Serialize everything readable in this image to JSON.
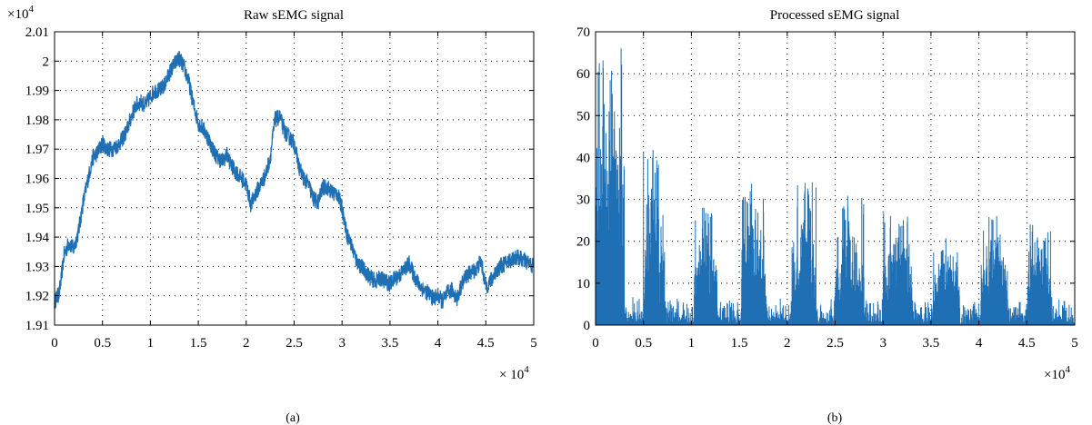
{
  "chart_data": [
    {
      "type": "line",
      "title": "Raw sEMG signal",
      "panel_label": "(a)",
      "x_exponent_label": "× 10",
      "x_exponent": "4",
      "y_exponent_label": "×10",
      "y_exponent": "4",
      "xlim": [
        0,
        5
      ],
      "ylim": [
        1.91,
        2.01
      ],
      "x_ticks": [
        0,
        0.5,
        1,
        1.5,
        2,
        2.5,
        3,
        3.5,
        4,
        4.5,
        5
      ],
      "x_tick_labels": [
        "0",
        "0.5",
        "1",
        "1.5",
        "2",
        "2.5",
        "3",
        "3.5",
        "4",
        "4.5",
        "5"
      ],
      "y_ticks": [
        1.91,
        1.92,
        1.93,
        1.94,
        1.95,
        1.96,
        1.97,
        1.98,
        1.99,
        2.0,
        2.01
      ],
      "y_tick_labels": [
        "1.91",
        "1.92",
        "1.93",
        "1.94",
        "1.95",
        "1.96",
        "1.97",
        "1.98",
        "1.99",
        "2",
        "2.01"
      ],
      "grid": true,
      "color": "#1f6fb4",
      "series": [
        {
          "x": [
            0,
            0.05,
            0.1,
            0.15,
            0.2,
            0.25,
            0.3,
            0.35,
            0.4,
            0.45,
            0.5,
            0.55,
            0.6,
            0.65,
            0.7,
            0.75,
            0.8,
            0.85,
            0.9,
            0.95,
            1.0,
            1.05,
            1.1,
            1.15,
            1.2,
            1.25,
            1.3,
            1.35,
            1.4,
            1.45,
            1.5,
            1.55,
            1.6,
            1.65,
            1.7,
            1.75,
            1.8,
            1.85,
            1.9,
            1.95,
            2.0,
            2.05,
            2.1,
            2.15,
            2.2,
            2.25,
            2.3,
            2.35,
            2.4,
            2.45,
            2.5,
            2.55,
            2.6,
            2.65,
            2.7,
            2.75,
            2.8,
            2.85,
            2.9,
            2.95,
            3.0,
            3.05,
            3.1,
            3.15,
            3.2,
            3.25,
            3.3,
            3.35,
            3.4,
            3.45,
            3.5,
            3.55,
            3.6,
            3.65,
            3.7,
            3.75,
            3.8,
            3.85,
            3.9,
            3.95,
            4.0,
            4.05,
            4.1,
            4.15,
            4.2,
            4.25,
            4.3,
            4.35,
            4.4,
            4.45,
            4.5,
            4.55,
            4.6,
            4.65,
            4.7,
            4.75,
            4.8,
            4.85,
            4.9,
            4.95,
            5.0
          ],
          "y": [
            1.918,
            1.921,
            1.934,
            1.938,
            1.936,
            1.942,
            1.952,
            1.96,
            1.967,
            1.969,
            1.972,
            1.97,
            1.97,
            1.971,
            1.973,
            1.976,
            1.981,
            1.985,
            1.986,
            1.985,
            1.988,
            1.99,
            1.99,
            1.992,
            1.996,
            1.999,
            2.001,
            1.998,
            1.993,
            1.985,
            1.979,
            1.977,
            1.974,
            1.97,
            1.967,
            1.966,
            1.968,
            1.964,
            1.962,
            1.96,
            1.958,
            1.951,
            1.955,
            1.958,
            1.961,
            1.967,
            1.98,
            1.981,
            1.976,
            1.974,
            1.972,
            1.964,
            1.96,
            1.958,
            1.953,
            1.952,
            1.957,
            1.957,
            1.955,
            1.955,
            1.95,
            1.941,
            1.937,
            1.932,
            1.93,
            1.928,
            1.926,
            1.925,
            1.926,
            1.925,
            1.924,
            1.926,
            1.927,
            1.929,
            1.931,
            1.927,
            1.924,
            1.922,
            1.921,
            1.919,
            1.92,
            1.918,
            1.921,
            1.922,
            1.919,
            1.924,
            1.927,
            1.928,
            1.929,
            1.932,
            1.923,
            1.925,
            1.928,
            1.93,
            1.931,
            1.932,
            1.933,
            1.933,
            1.932,
            1.931,
            1.93
          ]
        }
      ]
    },
    {
      "type": "bar",
      "title": "Processed sEMG signal",
      "panel_label": "(b)",
      "x_exponent_label": "×10",
      "x_exponent": "4",
      "xlim": [
        0,
        5
      ],
      "ylim": [
        0,
        70
      ],
      "x_ticks": [
        0,
        0.5,
        1,
        1.5,
        2,
        2.5,
        3,
        3.5,
        4,
        4.5,
        5
      ],
      "x_tick_labels": [
        "0",
        "0.5",
        "1",
        "1.5",
        "2",
        "2.5",
        "3",
        "3.5",
        "4",
        "4.5",
        "5"
      ],
      "y_ticks": [
        0,
        10,
        20,
        30,
        40,
        50,
        60,
        70
      ],
      "y_tick_labels": [
        "0",
        "10",
        "20",
        "30",
        "40",
        "50",
        "60",
        "70"
      ],
      "grid": true,
      "color": "#1f6fb4",
      "bursts": [
        {
          "x_start": 0.0,
          "x_end": 0.3,
          "peak": 67
        },
        {
          "x_start": 0.5,
          "x_end": 0.72,
          "peak": 43
        },
        {
          "x_start": 1.03,
          "x_end": 1.27,
          "peak": 28
        },
        {
          "x_start": 1.52,
          "x_end": 1.78,
          "peak": 34
        },
        {
          "x_start": 2.05,
          "x_end": 2.3,
          "peak": 35
        },
        {
          "x_start": 2.5,
          "x_end": 2.8,
          "peak": 31
        },
        {
          "x_start": 3.0,
          "x_end": 3.3,
          "peak": 27
        },
        {
          "x_start": 3.52,
          "x_end": 3.8,
          "peak": 20
        },
        {
          "x_start": 4.02,
          "x_end": 4.3,
          "peak": 26
        },
        {
          "x_start": 4.5,
          "x_end": 4.75,
          "peak": 26
        }
      ],
      "baseline_peak": 7
    }
  ]
}
